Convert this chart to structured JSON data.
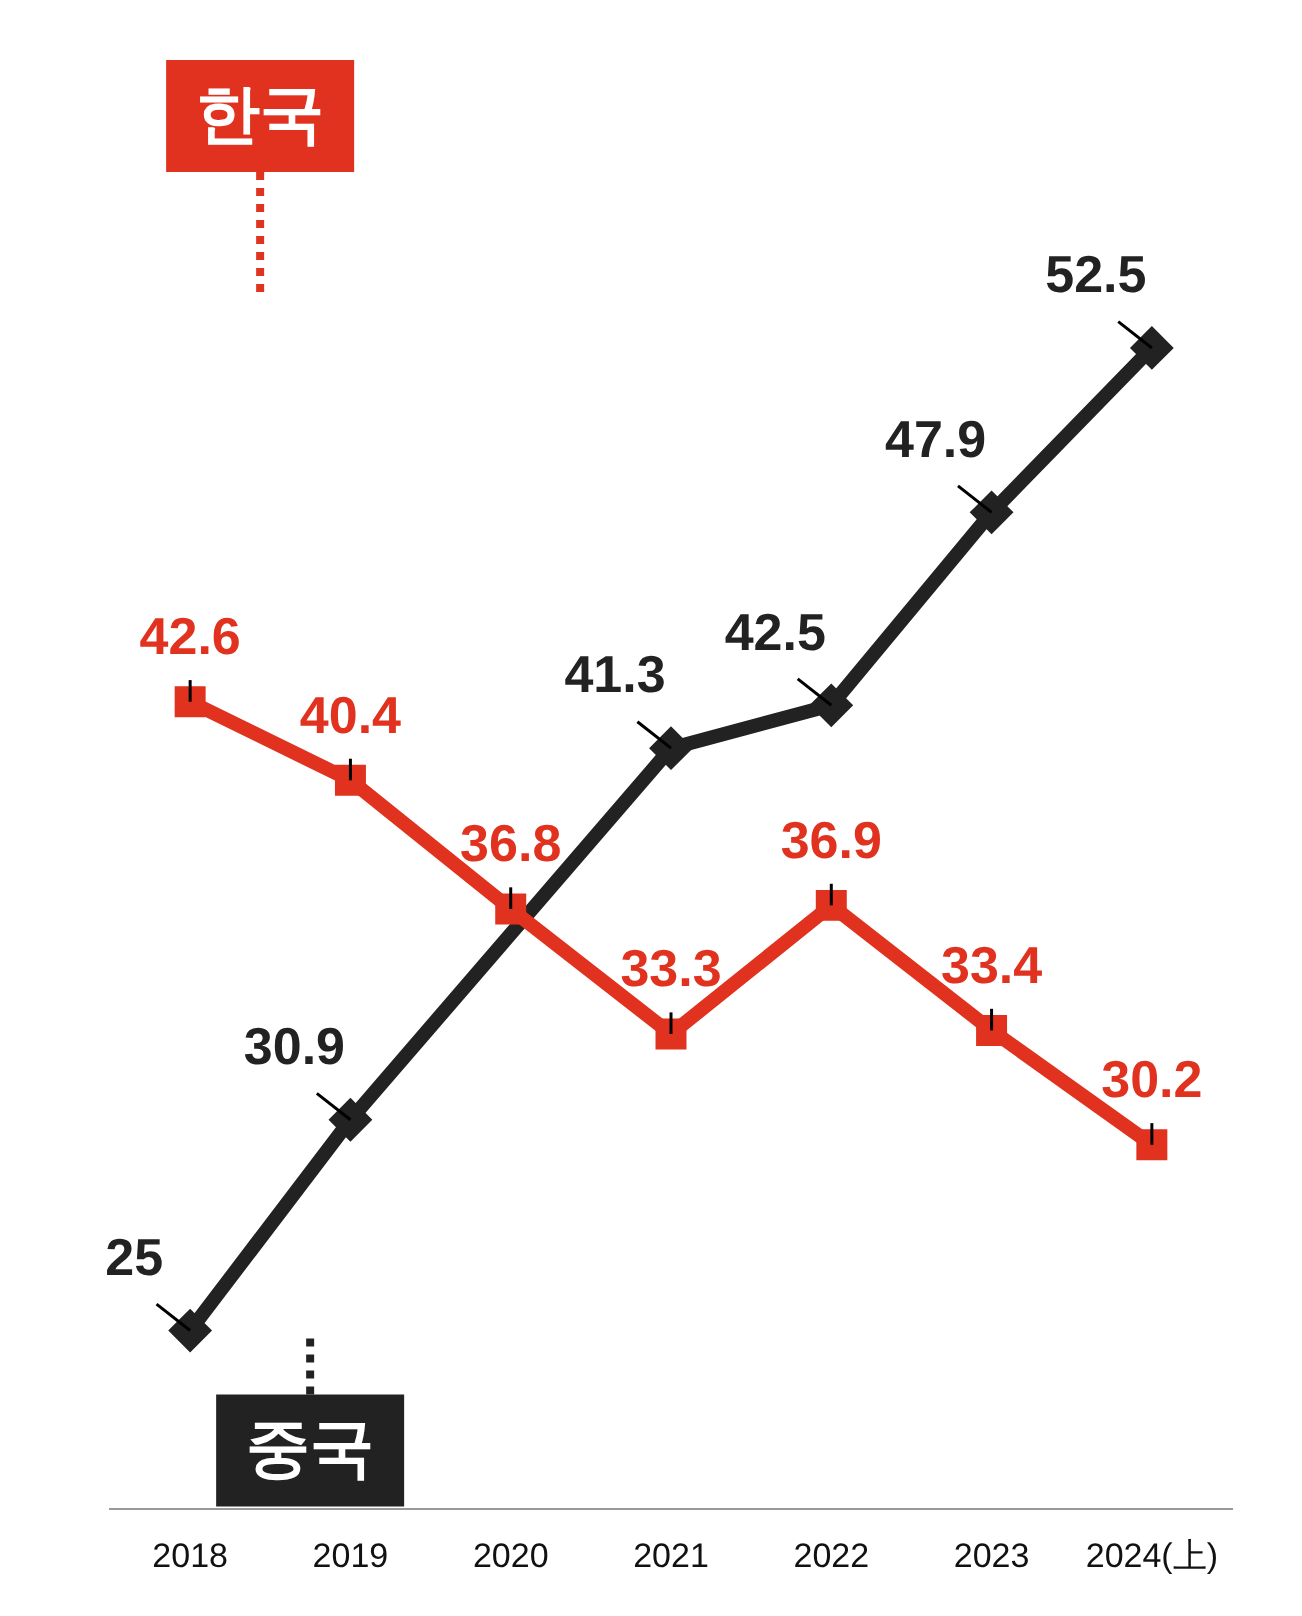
{
  "chart_data": {
    "type": "line",
    "categories": [
      "2018",
      "2019",
      "2020",
      "2021",
      "2022",
      "2023",
      "2024(上)"
    ],
    "series": [
      {
        "name": "한국",
        "color": "#e0321e",
        "marker": "square",
        "values": [
          42.6,
          40.4,
          36.8,
          33.3,
          36.9,
          33.4,
          30.2
        ],
        "value_labels": [
          "42.6",
          "40.4",
          "36.8",
          "33.3",
          "36.9",
          "33.4",
          "30.2"
        ]
      },
      {
        "name": "중국",
        "color": "#222222",
        "marker": "diamond",
        "values": [
          25,
          30.9,
          null,
          41.3,
          42.5,
          47.9,
          52.5
        ],
        "value_labels": [
          "25",
          "30.9",
          null,
          "41.3",
          "42.5",
          "47.9",
          "52.5"
        ]
      }
    ],
    "legend": "left",
    "grid": false,
    "tick_labels": "x"
  }
}
